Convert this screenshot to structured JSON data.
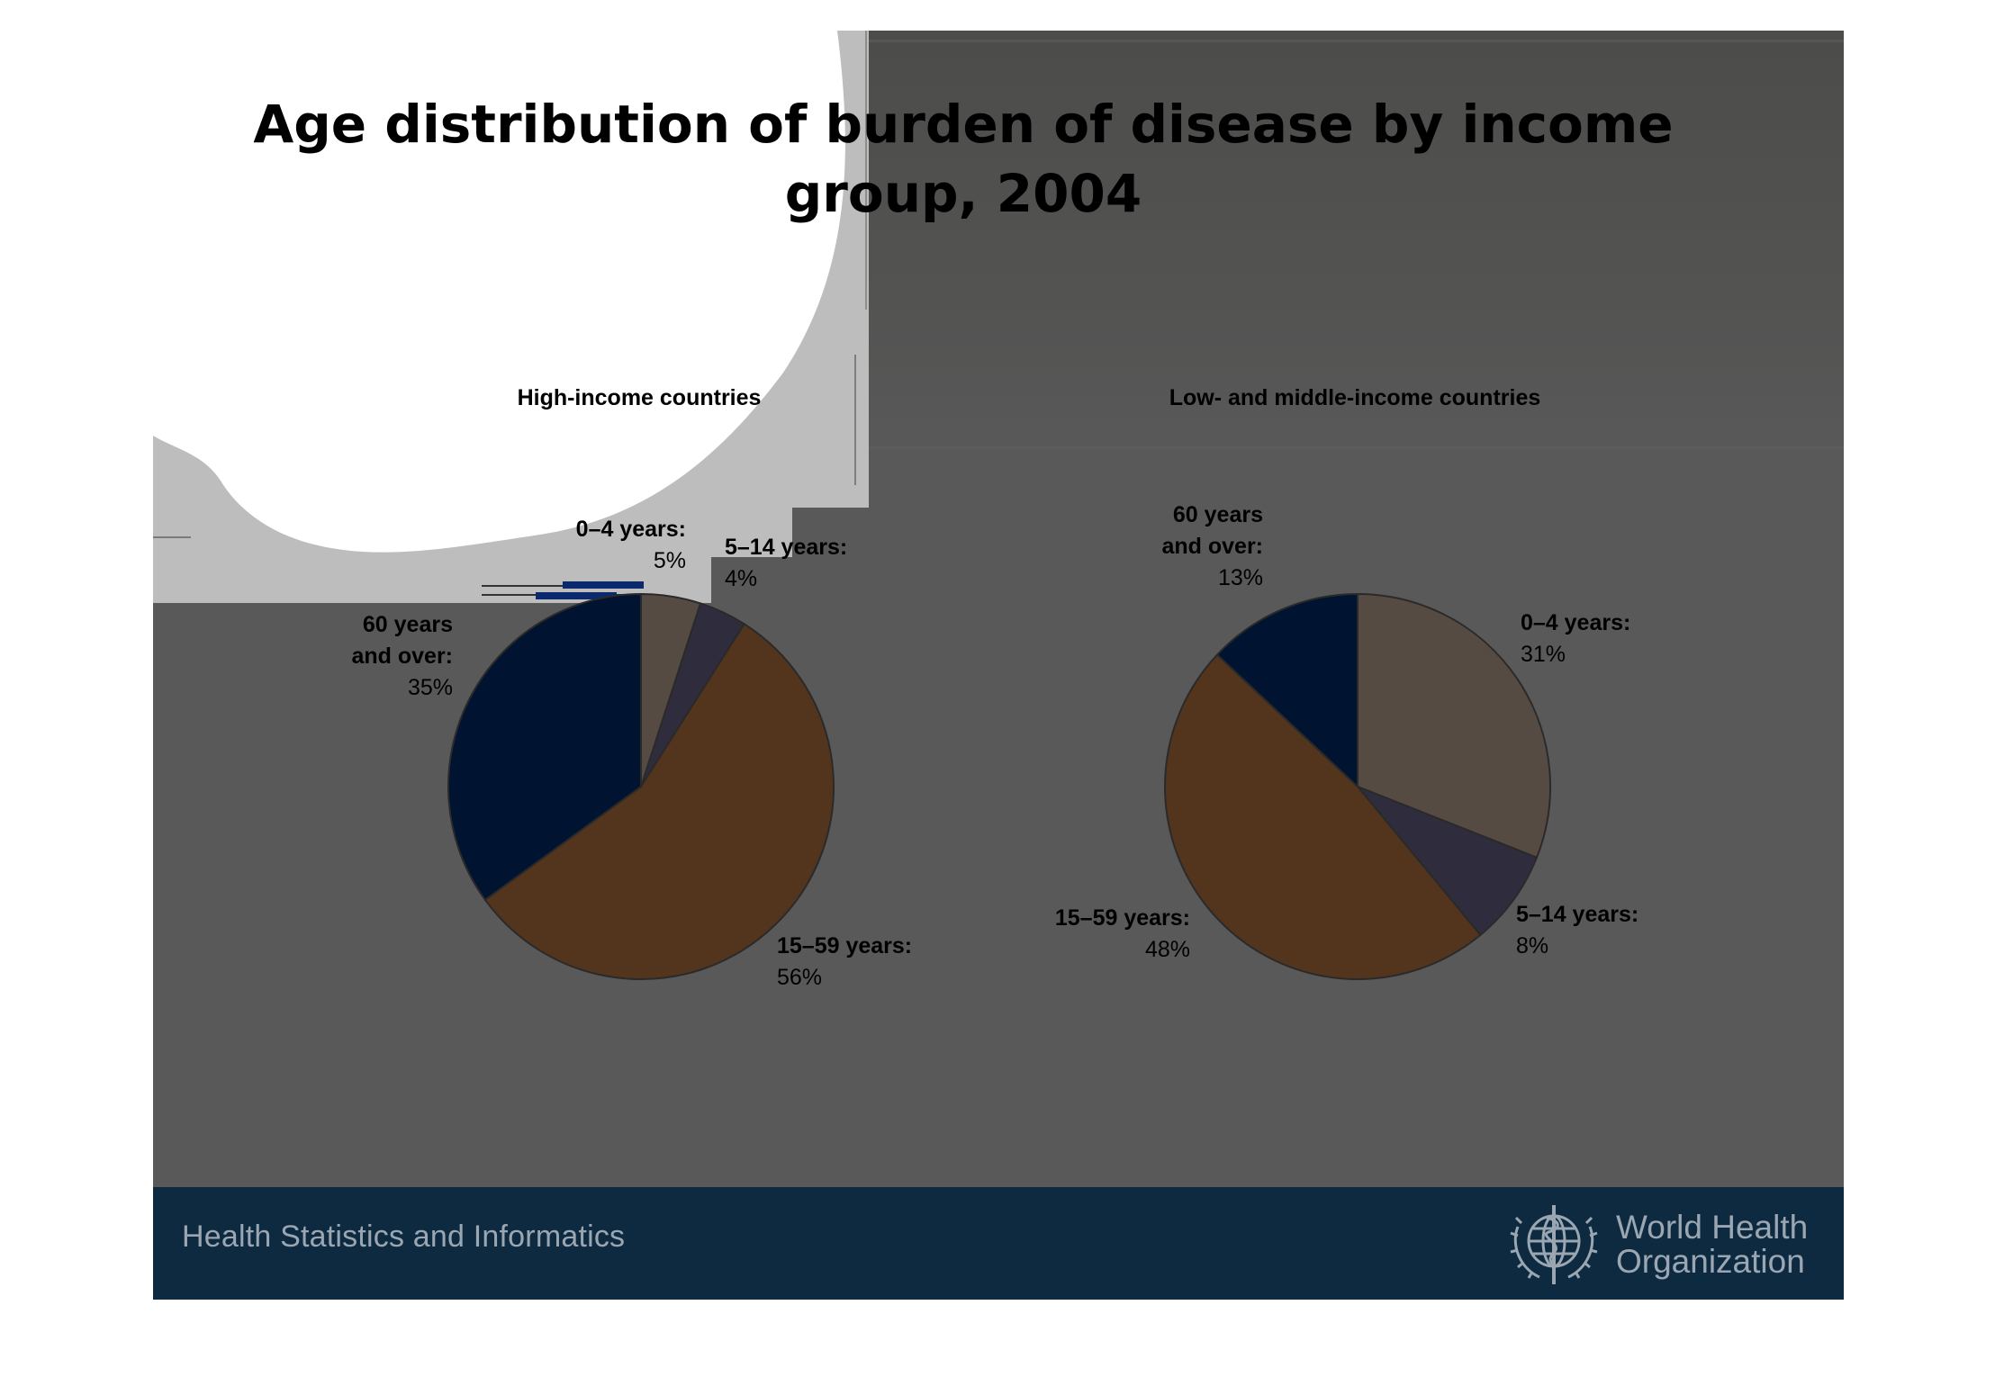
{
  "slide": {
    "title_line1": "Age distribution of burden of disease by income",
    "title_line2": "group, 2004",
    "footer_text": "Health Statistics and Informatics",
    "org_name_line1": "World Health",
    "org_name_line2": "Organization"
  },
  "colors": {
    "slide_bg": "#595959",
    "footer_bg": "#0d2a40",
    "age_0_4": "#564b43",
    "age_5_14": "#2f2d3d",
    "age_15_59": "#53341d",
    "age_60_plus": "#001331",
    "pie_outline": "#2a2a2a"
  },
  "chart_data": [
    {
      "type": "pie",
      "title": "High-income countries",
      "slices": [
        {
          "label_line1": "0–4 years:",
          "label_line2": "",
          "value": 5,
          "value_label": "5%",
          "color": "#564b43"
        },
        {
          "label_line1": "5–14 years:",
          "label_line2": "",
          "value": 4,
          "value_label": "4%",
          "color": "#2f2d3d"
        },
        {
          "label_line1": "15–59 years:",
          "label_line2": "",
          "value": 56,
          "value_label": "56%",
          "color": "#53341d"
        },
        {
          "label_line1": "60 years",
          "label_line2": "and over:",
          "value": 35,
          "value_label": "35%",
          "color": "#001331"
        }
      ]
    },
    {
      "type": "pie",
      "title": "Low- and middle-income countries",
      "slices": [
        {
          "label_line1": "0–4 years:",
          "label_line2": "",
          "value": 31,
          "value_label": "31%",
          "color": "#564b43"
        },
        {
          "label_line1": "5–14 years:",
          "label_line2": "",
          "value": 8,
          "value_label": "8%",
          "color": "#2f2d3d"
        },
        {
          "label_line1": "15–59 years:",
          "label_line2": "",
          "value": 48,
          "value_label": "48%",
          "color": "#53341d"
        },
        {
          "label_line1": "60 years",
          "label_line2": "and over:",
          "value": 13,
          "value_label": "13%",
          "color": "#001331"
        }
      ]
    }
  ]
}
